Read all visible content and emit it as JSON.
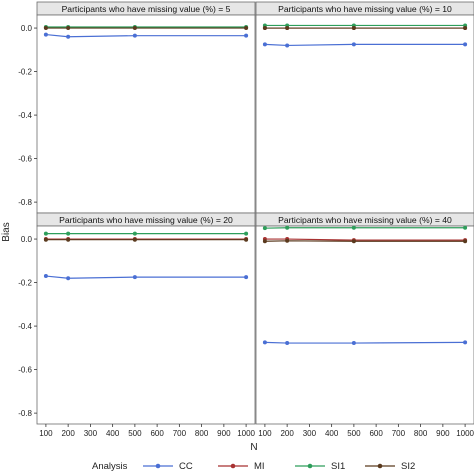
{
  "chart_data": {
    "type": "line",
    "ylabel": "Bias",
    "xlabel": "N",
    "x": [
      100,
      200,
      500,
      1000
    ],
    "x_ticks": [
      100,
      200,
      300,
      400,
      500,
      600,
      700,
      800,
      900,
      1000
    ],
    "y_ticks": [
      0.0,
      -0.2,
      -0.4,
      -0.6,
      -0.8
    ],
    "y_tick_labels": [
      "0.0",
      "-0.2",
      "-0.4",
      "-0.6",
      "-0.8"
    ],
    "ylim": [
      -0.85,
      0.06
    ],
    "xlim": [
      60,
      1040
    ],
    "grid": false,
    "legend_title": "Analysis",
    "legend_position": "bottom",
    "panels": [
      {
        "title": "Participants who have missing value (%) = 5",
        "series": [
          {
            "name": "CC",
            "color": "#4a6fd4",
            "values": [
              -0.03,
              -0.04,
              -0.035,
              -0.035
            ]
          },
          {
            "name": "MI",
            "color": "#a83232",
            "values": [
              0.002,
              0.002,
              0.002,
              0.002
            ]
          },
          {
            "name": "SI1",
            "color": "#2e9e5b",
            "values": [
              0.005,
              0.005,
              0.005,
              0.005
            ]
          },
          {
            "name": "SI2",
            "color": "#5a3a1e",
            "values": [
              0.0,
              0.0,
              0.0,
              0.0
            ]
          }
        ]
      },
      {
        "title": "Participants who have missing value (%) = 10",
        "series": [
          {
            "name": "CC",
            "color": "#4a6fd4",
            "values": [
              -0.075,
              -0.08,
              -0.075,
              -0.075
            ]
          },
          {
            "name": "MI",
            "color": "#a83232",
            "values": [
              0.0,
              0.0,
              0.0,
              0.0
            ]
          },
          {
            "name": "SI1",
            "color": "#2e9e5b",
            "values": [
              0.012,
              0.012,
              0.012,
              0.012
            ]
          },
          {
            "name": "SI2",
            "color": "#5a3a1e",
            "values": [
              0.0,
              0.0,
              0.0,
              0.0
            ]
          }
        ]
      },
      {
        "title": "Participants who have missing value (%) = 20",
        "series": [
          {
            "name": "CC",
            "color": "#4a6fd4",
            "values": [
              -0.17,
              -0.18,
              -0.175,
              -0.175
            ]
          },
          {
            "name": "MI",
            "color": "#a83232",
            "values": [
              0.0,
              0.0,
              0.0,
              0.0
            ]
          },
          {
            "name": "SI1",
            "color": "#2e9e5b",
            "values": [
              0.025,
              0.025,
              0.025,
              0.025
            ]
          },
          {
            "name": "SI2",
            "color": "#5a3a1e",
            "values": [
              -0.003,
              -0.003,
              -0.003,
              -0.003
            ]
          }
        ]
      },
      {
        "title": "Participants who have missing value (%) = 40",
        "series": [
          {
            "name": "CC",
            "color": "#4a6fd4",
            "values": [
              -0.475,
              -0.478,
              -0.478,
              -0.475
            ]
          },
          {
            "name": "MI",
            "color": "#a83232",
            "values": [
              0.0,
              0.0,
              -0.005,
              -0.005
            ]
          },
          {
            "name": "SI1",
            "color": "#2e9e5b",
            "values": [
              0.05,
              0.052,
              0.052,
              0.052
            ]
          },
          {
            "name": "SI2",
            "color": "#5a3a1e",
            "values": [
              -0.01,
              -0.008,
              -0.01,
              -0.01
            ]
          }
        ]
      }
    ],
    "legend": [
      {
        "name": "CC",
        "color": "#4a6fd4"
      },
      {
        "name": "MI",
        "color": "#a83232"
      },
      {
        "name": "SI1",
        "color": "#2e9e5b"
      },
      {
        "name": "SI2",
        "color": "#5a3a1e"
      }
    ]
  }
}
